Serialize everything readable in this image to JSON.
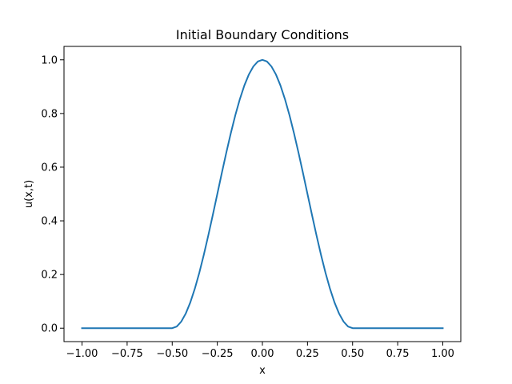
{
  "chart_data": {
    "type": "line",
    "title": "Initial Boundary Conditions",
    "xlabel": "x",
    "ylabel": "u(x,t)",
    "xlim": [
      -1.1,
      1.1
    ],
    "ylim": [
      -0.05,
      1.05
    ],
    "xticks": [
      -1.0,
      -0.75,
      -0.5,
      -0.25,
      0.0,
      0.25,
      0.5,
      0.75,
      1.0
    ],
    "xtick_labels": [
      "−1.00",
      "−0.75",
      "−0.50",
      "−0.25",
      "0.00",
      "0.25",
      "0.50",
      "0.75",
      "1.00"
    ],
    "yticks": [
      0.0,
      0.2,
      0.4,
      0.6,
      0.8,
      1.0
    ],
    "ytick_labels": [
      "0.0",
      "0.2",
      "0.4",
      "0.6",
      "0.8",
      "1.0"
    ],
    "grid": false,
    "series": [
      {
        "color": "#1f77b4",
        "x": [
          -1.0,
          -0.5,
          -0.475,
          -0.45,
          -0.425,
          -0.4,
          -0.375,
          -0.35,
          -0.325,
          -0.3,
          -0.275,
          -0.25,
          -0.225,
          -0.2,
          -0.175,
          -0.15,
          -0.125,
          -0.1,
          -0.075,
          -0.05,
          -0.025,
          0.0,
          0.025,
          0.05,
          0.075,
          0.1,
          0.125,
          0.15,
          0.175,
          0.2,
          0.225,
          0.25,
          0.275,
          0.3,
          0.325,
          0.35,
          0.375,
          0.4,
          0.425,
          0.45,
          0.475,
          0.5,
          1.0
        ],
        "y": [
          0.0,
          0.0,
          0.0062,
          0.0245,
          0.0545,
          0.0955,
          0.1464,
          0.2061,
          0.273,
          0.3455,
          0.4218,
          0.5,
          0.5782,
          0.6545,
          0.727,
          0.7939,
          0.8536,
          0.9045,
          0.9455,
          0.9755,
          0.9938,
          1.0,
          0.9938,
          0.9755,
          0.9455,
          0.9045,
          0.8536,
          0.7939,
          0.727,
          0.6545,
          0.5782,
          0.5,
          0.4218,
          0.3455,
          0.273,
          0.2061,
          0.1464,
          0.0955,
          0.0545,
          0.0245,
          0.0062,
          0.0,
          0.0
        ]
      }
    ]
  }
}
